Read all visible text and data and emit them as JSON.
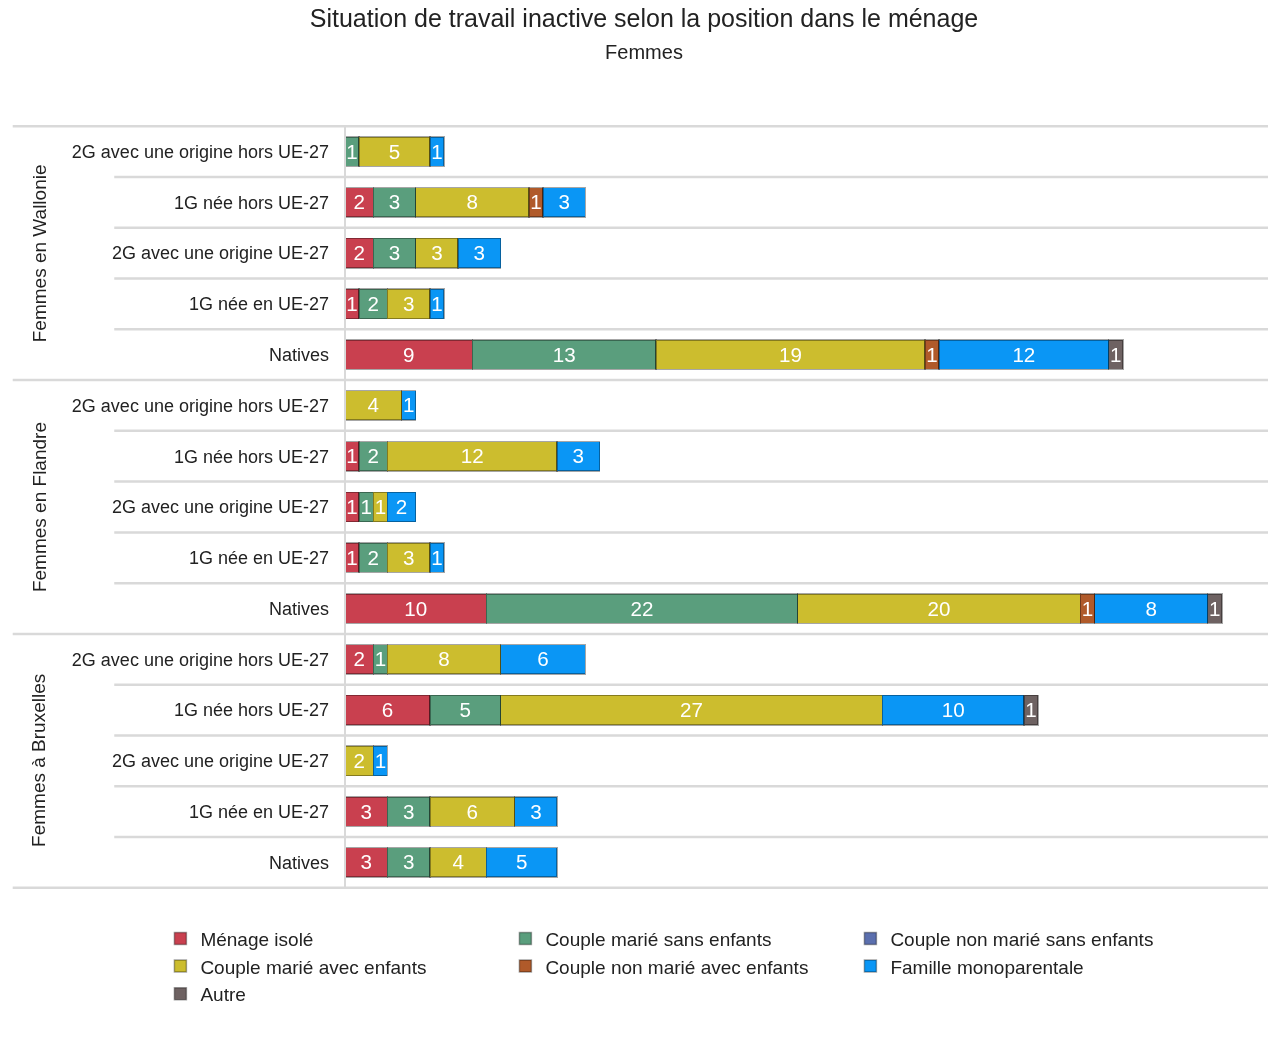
{
  "chart_data": {
    "type": "bar",
    "orientation": "horizontal",
    "stacked": true,
    "data_labels": true,
    "legend": "bottom",
    "title": "Situation de travail inactive selon la position dans le ménage",
    "subtitle": "Femmes",
    "categories": [
      "2G avec une origine hors UE-27",
      "1G née hors UE-27",
      "2G avec une origine UE-27",
      "1G née en UE-27",
      "Natives",
      "2G avec une origine hors UE-27",
      "1G née hors UE-27",
      "2G avec une origine UE-27",
      "1G née en UE-27",
      "Natives",
      "2G avec une origine hors UE-27",
      "1G née hors UE-27",
      "2G avec une origine UE-27",
      "1G née en UE-27",
      "Natives"
    ],
    "annotations": [
      "Femmes en Wallonie",
      "Femmes en Flandre",
      "Femmes à Bruxelles"
    ],
    "series": [
      {
        "name": "Ménage isolé",
        "color": "#c9404f",
        "values": [
          null,
          2,
          2,
          1,
          9,
          null,
          1,
          1,
          1,
          10,
          2,
          6,
          null,
          3,
          3
        ]
      },
      {
        "name": "Couple marié sans enfants",
        "color": "#5a9e7d",
        "values": [
          1,
          3,
          3,
          2,
          13,
          null,
          2,
          1,
          2,
          22,
          1,
          5,
          null,
          3,
          3
        ]
      },
      {
        "name": "Couple non marié sans enfants",
        "color": "#5b6fae",
        "values": [
          null,
          null,
          null,
          null,
          null,
          null,
          null,
          null,
          null,
          null,
          null,
          null,
          null,
          null,
          null
        ]
      },
      {
        "name": "Couple marié avec enfants",
        "color": "#ccbd2e",
        "values": [
          5,
          8,
          3,
          3,
          19,
          4,
          12,
          1,
          3,
          20,
          8,
          27,
          2,
          6,
          4
        ]
      },
      {
        "name": "Couple non marié avec enfants",
        "color": "#b05a2a",
        "values": [
          null,
          1,
          null,
          null,
          1,
          null,
          null,
          null,
          null,
          1,
          null,
          null,
          null,
          null,
          null
        ]
      },
      {
        "name": "Famille monoparentale",
        "color": "#0a96f5",
        "values": [
          1,
          3,
          3,
          1,
          12,
          1,
          3,
          2,
          1,
          8,
          6,
          10,
          1,
          3,
          5
        ]
      },
      {
        "name": "Autre",
        "color": "#6e6262",
        "values": [
          null,
          null,
          null,
          null,
          1,
          null,
          null,
          null,
          null,
          1,
          null,
          1,
          null,
          null,
          null
        ]
      }
    ]
  }
}
